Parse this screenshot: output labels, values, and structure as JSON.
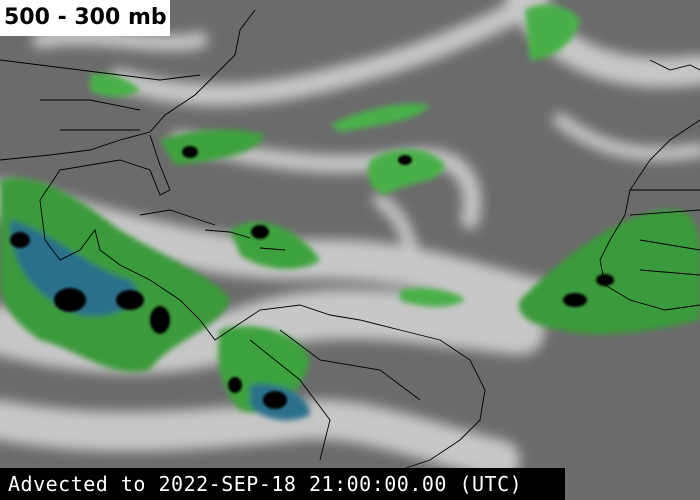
{
  "title": "500 - 300 mb",
  "timestamp": "Advected to 2022-SEP-18 21:00:00.00 (UTC)"
}
